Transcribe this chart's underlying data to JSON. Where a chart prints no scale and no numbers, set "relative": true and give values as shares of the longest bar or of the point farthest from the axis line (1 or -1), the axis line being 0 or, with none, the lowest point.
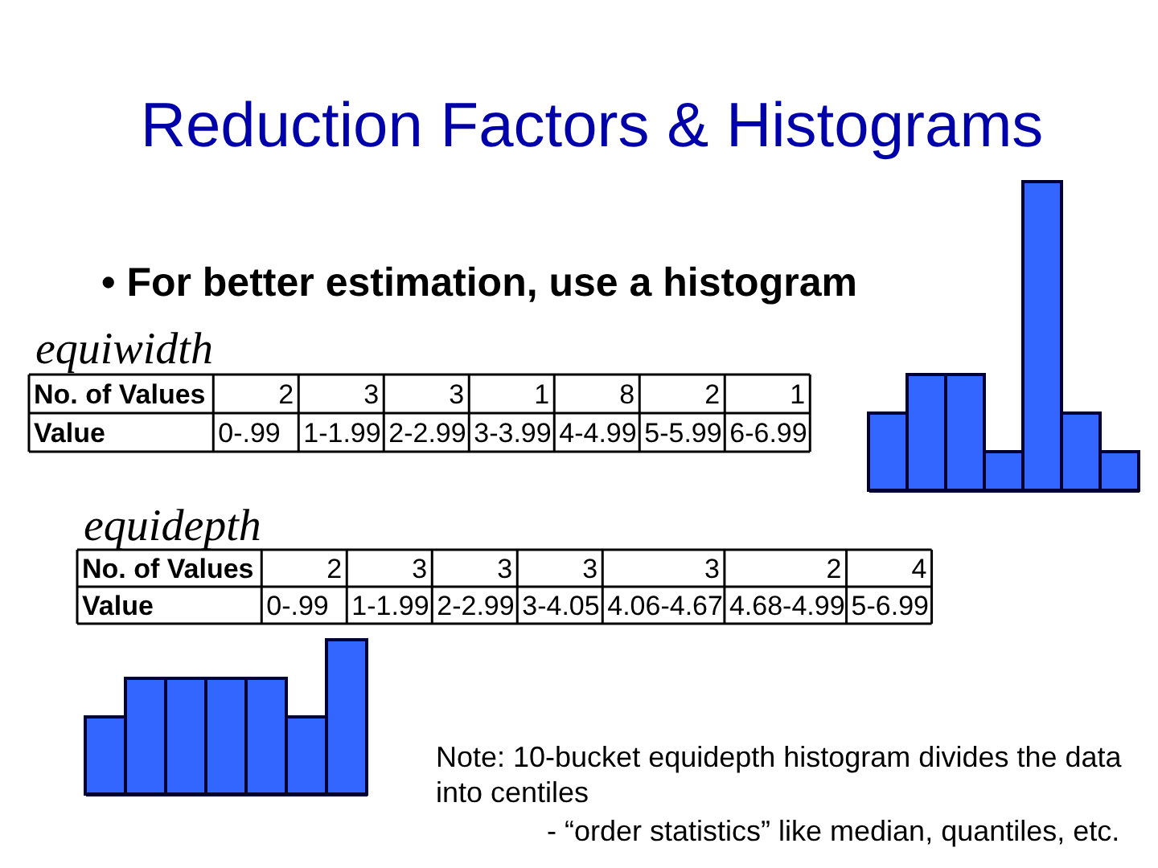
{
  "chart_data": [
    {
      "type": "bar",
      "relative": true,
      "tick_labels": false,
      "title": "Reduction Factors & Histograms",
      "subtitle": "• For better estimation, use a histogram",
      "annotations": [
        "equiwidth",
        "No. of Values",
        "2",
        "3",
        "3",
        "1",
        "8",
        "2",
        "1",
        "Value",
        "0-.99",
        "1-1.99",
        "2-2.99",
        "3-3.99",
        "4-4.99",
        "5-5.99",
        "6-6.99"
      ],
      "categories": [
        null,
        null,
        null,
        null,
        null,
        null,
        null
      ],
      "values": [
        0.25,
        0.375,
        0.375,
        0.125,
        1,
        0.25,
        0.125
      ],
      "color": "#3366ff"
    },
    {
      "type": "bar",
      "relative": true,
      "tick_labels": false,
      "annotations": [
        "equidepth",
        "No. of Values",
        "2",
        "3",
        "3",
        "3",
        "3",
        "2",
        "4",
        "Value",
        "0-.99",
        "1-1.99",
        "2-2.99",
        "3-4.05",
        "4.06-4.67",
        "4.68-4.99",
        "5-6.99",
        "Note: 10-bucket equidepth histogram divides the data into centiles",
        "- “order statistics” like median, quantiles, etc."
      ],
      "categories": [
        null,
        null,
        null,
        null,
        null,
        null,
        null
      ],
      "values": [
        0.5,
        0.75,
        0.75,
        0.75,
        0.75,
        0.5,
        1
      ],
      "color": "#3366ff"
    }
  ]
}
